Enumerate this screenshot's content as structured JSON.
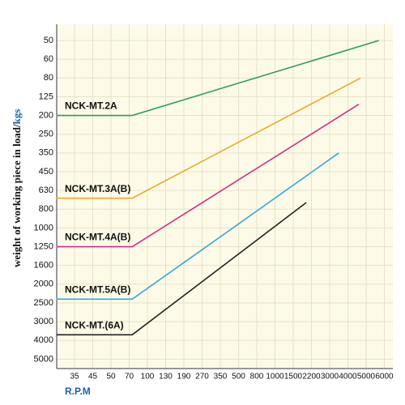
{
  "chart_data": {
    "type": "line",
    "xlabel": "R.P.M",
    "ylabel": "weight of working piece in load/",
    "ylabel_unit": "kgs",
    "xticks": [
      35,
      45,
      50,
      70,
      100,
      130,
      190,
      270,
      350,
      500,
      800,
      1000,
      1500,
      2200,
      3000,
      4000,
      5000,
      6000
    ],
    "yticks": [
      50,
      60,
      80,
      125,
      200,
      250,
      350,
      450,
      630,
      800,
      1000,
      1250,
      1600,
      2000,
      2500,
      3000,
      4000,
      5000
    ],
    "grid": true,
    "series": [
      {
        "name": "NCK-MT.2A",
        "color": "#2e9a6a",
        "x": [
          25,
          75,
          5700
        ],
        "values": [
          200,
          200,
          50
        ]
      },
      {
        "name": "NCK-MT.3A(B)",
        "color": "#e8aa2a",
        "x": [
          25,
          75,
          4700
        ],
        "values": [
          700,
          700,
          80
        ]
      },
      {
        "name": "NCK-MT.4A(B)",
        "color": "#cc2f8a",
        "x": [
          25,
          75,
          4600
        ],
        "values": [
          1250,
          1250,
          155
        ]
      },
      {
        "name": "NCK-MT.5A(B)",
        "color": "#35a9d4",
        "x": [
          25,
          75,
          3500
        ],
        "values": [
          2400,
          2400,
          350
        ]
      },
      {
        "name": "NCK-MT.(6A)",
        "color": "#222222",
        "x": [
          25,
          75,
          2000
        ],
        "values": [
          3700,
          3700,
          740
        ]
      }
    ]
  }
}
